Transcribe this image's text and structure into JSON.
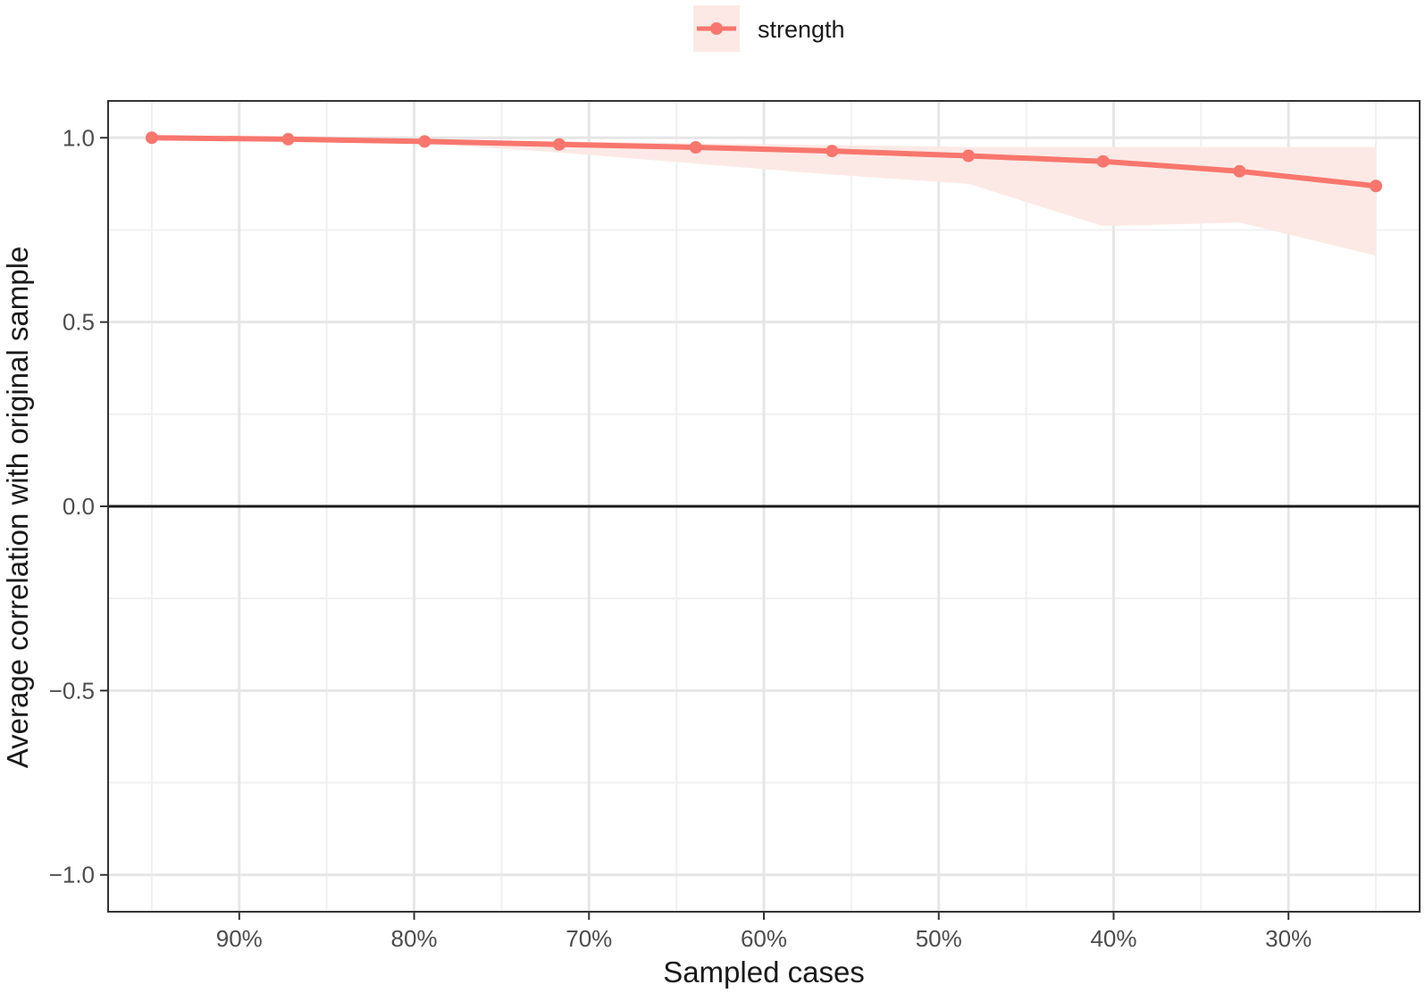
{
  "chart_data": {
    "type": "line",
    "xlabel": "Sampled cases",
    "ylabel": "Average correlation with original sample",
    "x_ticks": [
      0.9,
      0.8,
      0.7,
      0.6,
      0.5,
      0.4,
      0.3
    ],
    "x_tick_labels": [
      "90%",
      "80%",
      "70%",
      "60%",
      "50%",
      "40%",
      "30%"
    ],
    "xlim": [
      0.975,
      0.225
    ],
    "x_reversed": true,
    "y_ticks": [
      -1.0,
      -0.5,
      0.0,
      0.5,
      1.0
    ],
    "y_tick_labels": [
      "−1.0",
      "−0.5",
      "0.0",
      "0.5",
      "1.0"
    ],
    "ylim": [
      -1.1,
      1.1
    ],
    "grid": true,
    "zero_line": true,
    "legend_position": "top",
    "series": [
      {
        "name": "strength",
        "color": "#F8766D",
        "band_color": "#FCE9E5",
        "x": [
          0.95,
          0.872,
          0.794,
          0.717,
          0.639,
          0.561,
          0.483,
          0.406,
          0.328,
          0.25
        ],
        "y": [
          1.0,
          0.996,
          0.99,
          0.982,
          0.974,
          0.964,
          0.951,
          0.936,
          0.909,
          0.869
        ],
        "lower": [
          1.0,
          0.994,
          0.984,
          0.96,
          0.93,
          0.9,
          0.875,
          0.76,
          0.77,
          0.68
        ],
        "upper": [
          1.0,
          0.998,
          0.995,
          0.99,
          0.985,
          0.98,
          0.975,
          0.975,
          0.975,
          0.975
        ]
      }
    ]
  }
}
